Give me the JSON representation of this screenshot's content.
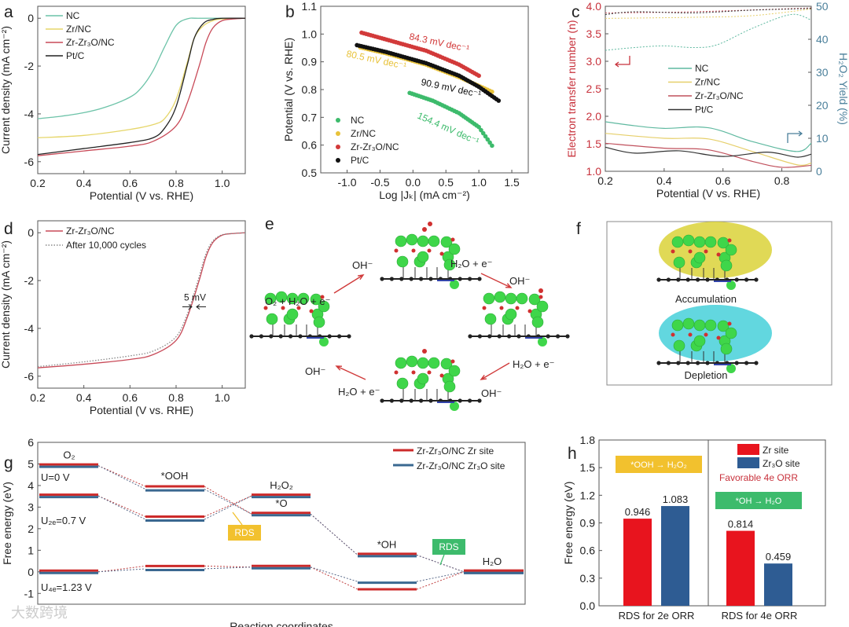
{
  "watermark": "大数跨境",
  "chart_data": [
    {
      "panel": "a",
      "type": "line",
      "xlabel": "Potential (V vs. RHE)",
      "ylabel": "Current density (mA cm⁻²)",
      "xlim": [
        0.2,
        1.1
      ],
      "ylim": [
        -6.5,
        0.5
      ],
      "xticks": [
        0.2,
        0.4,
        0.6,
        0.8,
        1.0
      ],
      "xtick_labels": [
        "0.2",
        "0.4",
        "0.6",
        "0.8",
        "1.0"
      ],
      "yticks": [
        0,
        -2,
        -4,
        -6
      ],
      "ytick_labels": [
        "0",
        "-2",
        "-4",
        "-6"
      ],
      "legend": "top-left",
      "series": [
        {
          "name": "NC",
          "color": "#6cc3a8",
          "x": [
            0.2,
            0.3,
            0.4,
            0.5,
            0.6,
            0.65,
            0.7,
            0.75,
            0.8,
            0.85,
            0.9,
            1.1
          ],
          "y": [
            -4.2,
            -4.1,
            -3.95,
            -3.7,
            -3.3,
            -2.9,
            -2.2,
            -1.2,
            -0.3,
            -0.02,
            0,
            0
          ]
        },
        {
          "name": "Zr/NC",
          "color": "#e6d66a",
          "x": [
            0.2,
            0.4,
            0.6,
            0.7,
            0.75,
            0.8,
            0.85,
            0.88,
            0.92,
            0.96,
            1.0,
            1.1
          ],
          "y": [
            -5.0,
            -4.9,
            -4.65,
            -4.45,
            -4.2,
            -3.4,
            -1.8,
            -0.8,
            -0.3,
            -0.1,
            -0.03,
            0
          ]
        },
        {
          "name": "Zr-Zr₃O/NC",
          "color": "#c84a58",
          "x": [
            0.2,
            0.4,
            0.6,
            0.7,
            0.8,
            0.85,
            0.9,
            0.93,
            0.96,
            1.0,
            1.05,
            1.1
          ],
          "y": [
            -5.75,
            -5.55,
            -5.35,
            -5.15,
            -4.5,
            -3.5,
            -2.0,
            -1.0,
            -0.4,
            -0.1,
            -0.03,
            0
          ]
        },
        {
          "name": "Pt/C",
          "color": "#222222",
          "x": [
            0.2,
            0.4,
            0.6,
            0.7,
            0.75,
            0.8,
            0.85,
            0.88,
            0.92,
            0.96,
            1.0,
            1.1
          ],
          "y": [
            -5.7,
            -5.45,
            -5.2,
            -5.0,
            -4.6,
            -3.7,
            -1.9,
            -0.8,
            -0.2,
            -0.05,
            0,
            0
          ]
        }
      ]
    },
    {
      "panel": "b",
      "type": "scatter",
      "xlabel": "Log |Jₖ| (mA cm⁻²)",
      "ylabel": "Potential (V vs. RHE)",
      "xlim": [
        -1.4,
        1.75
      ],
      "ylim": [
        0.5,
        1.1
      ],
      "xticks": [
        -1.0,
        -0.5,
        0.0,
        0.5,
        1.0,
        1.5
      ],
      "xtick_labels": [
        "-1.0",
        "-0.5",
        "0.0",
        "0.5",
        "1.0",
        "1.5"
      ],
      "yticks": [
        0.5,
        0.6,
        0.7,
        0.8,
        0.9,
        1.0,
        1.1
      ],
      "ytick_labels": [
        "0.5",
        "0.6",
        "0.7",
        "0.8",
        "0.9",
        "1.0",
        "1.1"
      ],
      "legend": "bottom-left",
      "series": [
        {
          "name": "NC",
          "color": "#3dbb6c",
          "slope_label": "154.4 mV dec⁻¹",
          "x": [
            -0.05,
            0.3,
            0.7,
            1.0,
            1.2
          ],
          "y": [
            0.788,
            0.76,
            0.715,
            0.665,
            0.598
          ]
        },
        {
          "name": "Zr/NC",
          "color": "#e8c23a",
          "slope_label": "80.5 mV dec⁻¹",
          "x": [
            -0.8,
            -0.4,
            0.2,
            0.7,
            1.2
          ],
          "y": [
            0.952,
            0.93,
            0.89,
            0.845,
            0.792
          ]
        },
        {
          "name": "Zr-Zr₃O/NC",
          "color": "#d23a3a",
          "slope_label": "84.3 mV dec⁻¹",
          "x": [
            -0.78,
            -0.4,
            0.2,
            0.7,
            1.0
          ],
          "y": [
            1.005,
            0.98,
            0.94,
            0.89,
            0.85
          ]
        },
        {
          "name": "Pt/C",
          "color": "#111111",
          "slope_label": "90.9 mV dec⁻¹",
          "x": [
            -0.85,
            -0.4,
            0.2,
            0.7,
            1.0,
            1.3
          ],
          "y": [
            0.96,
            0.935,
            0.895,
            0.85,
            0.81,
            0.76
          ]
        }
      ]
    },
    {
      "panel": "c",
      "type": "line",
      "xlabel": "Potential (V vs. RHE)",
      "ylabel": "Electron transfer number (n)",
      "ylabel_right": "H₂O₂ Yield (%)",
      "xlim": [
        0.2,
        0.9
      ],
      "ylim": [
        1.0,
        4.0
      ],
      "ylim_right": [
        0,
        50
      ],
      "xticks": [
        0.2,
        0.4,
        0.6,
        0.8
      ],
      "xtick_labels": [
        "0.2",
        "0.4",
        "0.6",
        "0.8"
      ],
      "yticks": [
        1.0,
        1.5,
        2.0,
        2.5,
        3.0,
        3.5,
        4.0
      ],
      "ytick_labels": [
        "1.0",
        "1.5",
        "2.0",
        "2.5",
        "3.0",
        "3.5",
        "4.0"
      ],
      "yticks_right": [
        0,
        10,
        20,
        30,
        40,
        50
      ],
      "ytick_labels_right": [
        "0",
        "10",
        "20",
        "30",
        "40",
        "50"
      ],
      "left_axis_color": "#c8323c",
      "right_axis_color": "#4a7f9a",
      "legend": "center",
      "series": [
        {
          "name": "NC",
          "color": "#5fb9a0",
          "n_x": [
            0.2,
            0.3,
            0.4,
            0.5,
            0.58,
            0.7,
            0.83,
            0.9
          ],
          "n_y": [
            3.2,
            3.25,
            3.28,
            3.25,
            3.3,
            3.6,
            3.85,
            3.75
          ],
          "yield_x": [
            0.2,
            0.3,
            0.4,
            0.55,
            0.7,
            0.85,
            0.9
          ],
          "yield_y": [
            15,
            13.8,
            13,
            13.2,
            9,
            6,
            8.5
          ]
        },
        {
          "name": "Zr/NC",
          "color": "#e6cf6a",
          "n_x": [
            0.2,
            0.5,
            0.7,
            0.9
          ],
          "n_y": [
            3.78,
            3.8,
            3.83,
            3.95
          ],
          "yield_x": [
            0.2,
            0.4,
            0.55,
            0.7,
            0.85,
            0.9
          ],
          "yield_y": [
            11.5,
            10,
            9.8,
            6,
            2,
            2.5
          ]
        },
        {
          "name": "Zr-Zr₃O/NC",
          "color": "#c0505c",
          "n_x": [
            0.2,
            0.5,
            0.9
          ],
          "n_y": [
            3.88,
            3.9,
            3.97
          ],
          "yield_x": [
            0.2,
            0.4,
            0.55,
            0.7,
            0.8,
            0.9
          ],
          "yield_y": [
            8.5,
            7,
            6.5,
            3,
            1.2,
            1.8
          ]
        },
        {
          "name": "Pt/C",
          "color": "#333333",
          "n_x": [
            0.2,
            0.3,
            0.5,
            0.7,
            0.9
          ],
          "n_y": [
            3.85,
            3.9,
            3.88,
            3.93,
            3.96
          ],
          "yield_x": [
            0.2,
            0.3,
            0.45,
            0.6,
            0.75,
            0.85,
            0.9
          ],
          "yield_y": [
            7.3,
            5.5,
            6.2,
            4.5,
            5.8,
            4.3,
            5.2
          ]
        }
      ]
    },
    {
      "panel": "d",
      "type": "line",
      "xlabel": "Potential (V vs. RHE)",
      "ylabel": "Current density (mA cm⁻²)",
      "xlim": [
        0.2,
        1.1
      ],
      "ylim": [
        -6.5,
        0.5
      ],
      "xticks": [
        0.2,
        0.4,
        0.6,
        0.8,
        1.0
      ],
      "xtick_labels": [
        "0.2",
        "0.4",
        "0.6",
        "0.8",
        "1.0"
      ],
      "yticks": [
        0,
        -2,
        -4,
        -6
      ],
      "ytick_labels": [
        "0",
        "-2",
        "-4",
        "-6"
      ],
      "legend": "top-left",
      "annotation": "5 mV",
      "series": [
        {
          "name": "Zr-Zr₃O/NC",
          "color": "#c84a58",
          "style": "solid",
          "x": [
            0.2,
            0.4,
            0.6,
            0.7,
            0.8,
            0.85,
            0.9,
            0.93,
            0.96,
            1.0,
            1.05,
            1.1
          ],
          "y": [
            -5.65,
            -5.5,
            -5.3,
            -5.1,
            -4.5,
            -3.5,
            -2.0,
            -1.0,
            -0.4,
            -0.1,
            -0.03,
            0
          ]
        },
        {
          "name": "After 10,000 cycles",
          "color": "#888888",
          "style": "dotted",
          "x": [
            0.2,
            0.4,
            0.6,
            0.7,
            0.795,
            0.845,
            0.895,
            0.925,
            0.955,
            0.995,
            1.05,
            1.1
          ],
          "y": [
            -5.6,
            -5.4,
            -5.15,
            -4.95,
            -4.4,
            -3.5,
            -2.0,
            -1.0,
            -0.4,
            -0.1,
            -0.03,
            0
          ]
        }
      ]
    },
    {
      "panel": "g",
      "type": "energy-diagram",
      "xlabel": "Reaction coordinates",
      "ylabel": "Free energy (eV)",
      "ylim": [
        -1.5,
        6
      ],
      "yticks": [
        -1,
        0,
        1,
        2,
        3,
        4,
        5,
        6
      ],
      "ytick_labels": [
        "-1",
        "0",
        "1",
        "2",
        "3",
        "4",
        "5",
        "6"
      ],
      "legend": "top-right",
      "series_names": [
        "Zr-Zr₃O/NC Zr site",
        "Zr-Zr₃O/NC Zr₃O site"
      ],
      "series_colors": [
        "#cc2a2a",
        "#3a6890"
      ],
      "state_labels": [
        "O₂",
        "*OOH",
        "H₂O₂",
        "*O",
        "*OH",
        "H₂O"
      ],
      "conditions": [
        {
          "label": "U=0 V",
          "zr": [
            4.92,
            3.96,
            2.68,
            0.78,
            0
          ],
          "zr3o": [
            4.92,
            3.83,
            2.68,
            0.78,
            0
          ]
        },
        {
          "label": "U₂ₑ=0.7 V",
          "zr": [
            3.52,
            2.56,
            3.52,
            null,
            null
          ],
          "zr3o": [
            3.52,
            2.43,
            3.52,
            null,
            null
          ]
        },
        {
          "label": "U₄ₑ=1.23 V",
          "zr": [
            0,
            0.27,
            0.22,
            -0.81,
            0
          ],
          "zr3o": [
            0,
            0.14,
            0.22,
            -0.45,
            0
          ]
        }
      ],
      "rds_labels": [
        "RDS",
        "RDS"
      ],
      "rds_colors": [
        "#f2c12e",
        "#3dbb6c"
      ]
    },
    {
      "panel": "h",
      "type": "bar",
      "ylabel": "Free energy (eV)",
      "ylim": [
        0,
        1.8
      ],
      "yticks": [
        0,
        0.3,
        0.6,
        0.9,
        1.2,
        1.5,
        1.8
      ],
      "ytick_labels": [
        "0.0",
        "0.3",
        "0.6",
        "0.9",
        "1.2",
        "1.5",
        "1.8"
      ],
      "categories": [
        "RDS for 2e ORR",
        "RDS for 4e ORR"
      ],
      "legend": "top-right",
      "series": [
        {
          "name": "Zr site",
          "color": "#e8141e",
          "values": [
            0.946,
            0.814
          ],
          "value_labels": [
            "0.946",
            "0.814"
          ]
        },
        {
          "name": "Zr₃O site",
          "color": "#2e5c93",
          "values": [
            1.083,
            0.459
          ],
          "value_labels": [
            "1.083",
            "0.459"
          ]
        }
      ],
      "annotations": {
        "step_2e": "*OOH → H₂O₂",
        "favorable": "Favorable 4e ORR",
        "step_4e": "*OH → H₂O"
      }
    }
  ],
  "panel_e": {
    "label": "e",
    "species": [
      "OH⁻",
      "H₂O + e⁻",
      "O₂ + H₂O + e⁻",
      "OH⁻",
      "H₂O + e⁻",
      "OH⁻",
      "OH⁻",
      "H₂O + e⁻"
    ]
  },
  "panel_f": {
    "label": "f",
    "accumulation": "Accumulation",
    "depletion": "Depletion"
  }
}
